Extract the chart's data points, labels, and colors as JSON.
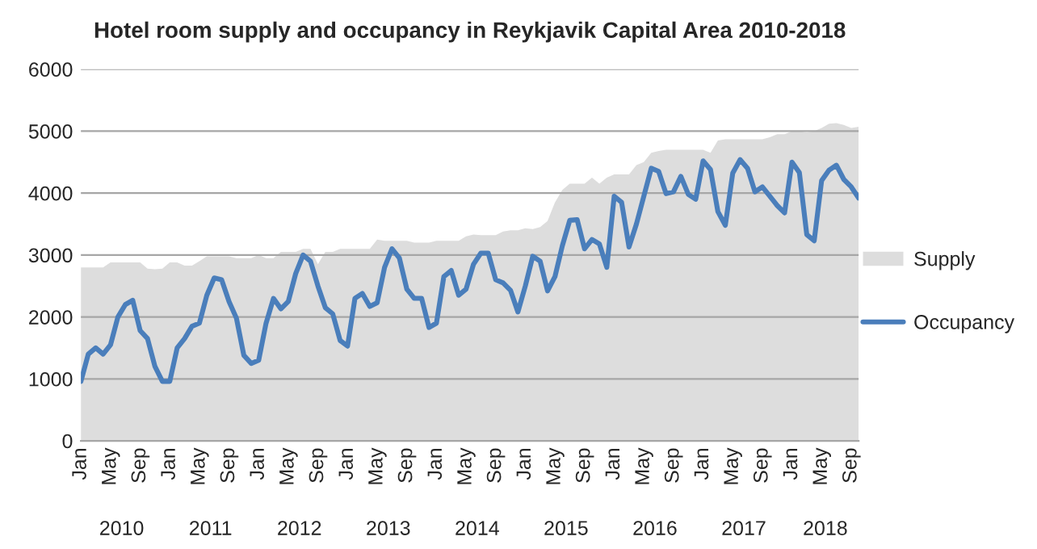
{
  "chart_data": {
    "type": "line",
    "title": "Hotel room supply and occupancy in Reykjavik Capital Area 2010-2018",
    "categories": [
      "Jan",
      null,
      null,
      null,
      "May",
      null,
      null,
      null,
      "Sep",
      null,
      null,
      null,
      "Jan",
      null,
      null,
      null,
      "May",
      null,
      null,
      null,
      "Sep",
      null,
      null,
      null,
      "Jan",
      null,
      null,
      null,
      "May",
      null,
      null,
      null,
      "Sep",
      null,
      null,
      null,
      "Jan",
      null,
      null,
      null,
      "May",
      null,
      null,
      null,
      "Sep",
      null,
      null,
      null,
      "Jan",
      null,
      null,
      null,
      "May",
      null,
      null,
      null,
      "Sep",
      null,
      null,
      null,
      "Jan",
      null,
      null,
      null,
      "May",
      null,
      null,
      null,
      "Sep",
      null,
      null,
      null,
      "Jan",
      null,
      null,
      null,
      "May",
      null,
      null,
      null,
      "Sep",
      null,
      null,
      null,
      "Jan",
      null,
      null,
      null,
      "May",
      null,
      null,
      null,
      "Sep",
      null,
      null,
      null,
      "Jan",
      null,
      null,
      null,
      "May",
      null,
      null,
      null,
      "Sep",
      null
    ],
    "annotations": [
      "2010",
      "2011",
      "2012",
      "2013",
      "2014",
      "2015",
      "2016",
      "2017",
      "2018"
    ],
    "series": [
      {
        "name": "Supply",
        "type": "area",
        "color": "#dddddd",
        "values": [
          2800,
          2800,
          2800,
          2800,
          2880,
          2880,
          2880,
          2880,
          2880,
          2780,
          2770,
          2780,
          2880,
          2880,
          2830,
          2830,
          2900,
          2980,
          2980,
          2980,
          2980,
          2950,
          2950,
          2950,
          3000,
          2950,
          2950,
          3050,
          3050,
          3050,
          3100,
          3100,
          2850,
          3050,
          3050,
          3100,
          3100,
          3100,
          3100,
          3100,
          3250,
          3230,
          3230,
          3230,
          3230,
          3200,
          3200,
          3200,
          3230,
          3230,
          3230,
          3230,
          3300,
          3330,
          3320,
          3320,
          3320,
          3380,
          3400,
          3400,
          3430,
          3420,
          3450,
          3550,
          3850,
          4050,
          4150,
          4150,
          4150,
          4250,
          4150,
          4250,
          4300,
          4300,
          4300,
          4450,
          4500,
          4650,
          4680,
          4700,
          4700,
          4700,
          4700,
          4700,
          4700,
          4650,
          4850,
          4870,
          4870,
          4870,
          4870,
          4870,
          4870,
          4900,
          4950,
          4950,
          5000,
          5000,
          4980,
          5000,
          5050,
          5120,
          5130,
          5100,
          5050,
          5070
        ]
      },
      {
        "name": "Occupancy",
        "color": "#4a7ebb",
        "values": [
          960,
          1400,
          1500,
          1400,
          1550,
          2000,
          2200,
          2270,
          1780,
          1650,
          1200,
          960,
          960,
          1500,
          1650,
          1850,
          1900,
          2350,
          2630,
          2600,
          2250,
          1980,
          1380,
          1250,
          1300,
          1900,
          2300,
          2130,
          2250,
          2700,
          3000,
          2900,
          2500,
          2150,
          2050,
          1620,
          1530,
          2300,
          2380,
          2170,
          2230,
          2800,
          3100,
          2950,
          2450,
          2300,
          2300,
          1830,
          1900,
          2650,
          2750,
          2350,
          2450,
          2850,
          3030,
          3030,
          2600,
          2550,
          2430,
          2080,
          2500,
          2980,
          2900,
          2420,
          2650,
          3150,
          3560,
          3570,
          3100,
          3250,
          3180,
          2800,
          3950,
          3850,
          3130,
          3500,
          3950,
          4400,
          4350,
          3990,
          4020,
          4270,
          3980,
          3900,
          4520,
          4380,
          3700,
          3480,
          4320,
          4540,
          4400,
          4020,
          4100,
          3950,
          3800,
          3680,
          4500,
          4330,
          3330,
          3230,
          4200,
          4370,
          4450,
          4220,
          4100,
          3920
        ]
      }
    ],
    "ylim": [
      0,
      6000
    ],
    "yticks": [
      0,
      1000,
      2000,
      3000,
      4000,
      5000,
      6000
    ],
    "grid": "y",
    "legend": "right",
    "line_style": "solid",
    "marker": "none"
  }
}
